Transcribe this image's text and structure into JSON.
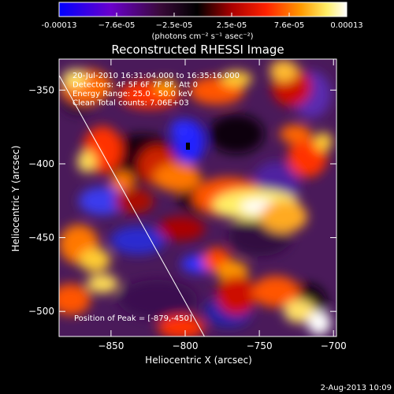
{
  "colorbar": {
    "ticks": [
      "-0.00013",
      "−7.6e-05",
      "−2.5e-05",
      "2.5e-05",
      "7.6e-05",
      "0.00013"
    ],
    "unit_label": "(photons cm⁻² s⁻¹ asec⁻²)"
  },
  "chart_data": {
    "type": "heatmap",
    "title": "Reconstructed RHESSI Image",
    "xlabel": "Heliocentric X (arcsec)",
    "ylabel": "Heliocentric Y (arcsec)",
    "xlim": [
      -885,
      -698
    ],
    "ylim": [
      -517,
      -329
    ],
    "x_ticks": [
      "−850",
      "−800",
      "−750",
      "−700"
    ],
    "x_tick_values": [
      -850,
      -800,
      -750,
      -700
    ],
    "y_ticks": [
      "−350",
      "−400",
      "−450",
      "−500"
    ],
    "y_tick_values": [
      -350,
      -400,
      -450,
      -500
    ],
    "colorbar_range": [
      -0.00013,
      0.00013
    ],
    "colormap": [
      "#0000ff",
      "#6a00cc",
      "#4a0a4a",
      "#000000",
      "#aa0000",
      "#ff2200",
      "#ff9900",
      "#ffee66",
      "#ffffff"
    ],
    "annotations": [
      "20-Jul-2010 16:31:04.000 to 16:35:16.000",
      "Detectors: 4F 5F 6F 7F 8F, Att 0",
      "Energy Range: 25.0 - 50.0 keV",
      "Clean    Total counts: 7.06E+03"
    ],
    "peak_label": "Position of Peak = [-879,-450]",
    "peak_position": [
      -879,
      -450
    ],
    "limb_line": [
      [
        -885,
        -340
      ],
      [
        -787,
        -517
      ]
    ]
  },
  "footer": {
    "timestamp": "2-Aug-2013 10:09"
  }
}
